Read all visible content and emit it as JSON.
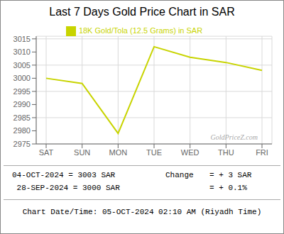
{
  "chart_data": {
    "type": "line",
    "title": "Last 7 Days Gold Price Chart in SAR",
    "categories": [
      "SAT",
      "SUN",
      "MON",
      "TUE",
      "WED",
      "THU",
      "FRI"
    ],
    "series": [
      {
        "name": "18K Gold/Tola (12.5 Grams) in SAR",
        "color": "#c8d400",
        "values": [
          3000,
          2998,
          2979,
          3012,
          3008,
          3006,
          3003
        ]
      }
    ],
    "ylim": [
      2975,
      3016
    ],
    "yticks": [
      2975,
      2980,
      2985,
      2990,
      2995,
      3000,
      3005,
      3010,
      3015
    ],
    "grid": true,
    "annotations": [
      "GoldPriceZ.com",
      "04-OCT-2024 = 3003 SAR",
      " 28-SEP-2024 = 3000 SAR",
      "Change",
      "= + 3 SAR",
      "= + 0.1%",
      "Chart Date/Time: 05-OCT-2024 02:10 AM (Riyadh Time)"
    ]
  }
}
